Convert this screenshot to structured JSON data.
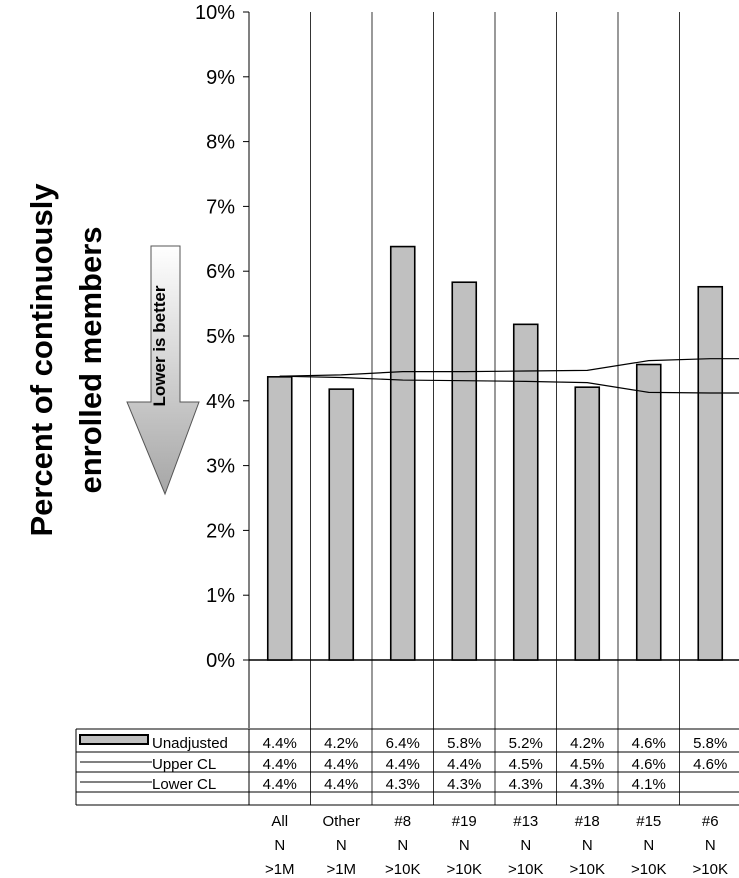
{
  "chart_data": {
    "type": "bar",
    "ylabel_lines": [
      "Percent of continuously",
      "enrolled members"
    ],
    "ylim": [
      0,
      10
    ],
    "yticks": [
      "0%",
      "1%",
      "2%",
      "3%",
      "4%",
      "5%",
      "6%",
      "7%",
      "8%",
      "9%",
      "10%"
    ],
    "annotation": "Lower is better",
    "categories": [
      [
        "All",
        "N",
        ">1M"
      ],
      [
        "Other",
        "N",
        ">1M"
      ],
      [
        "#8",
        "N",
        ">10K"
      ],
      [
        "#19",
        "N",
        ">10K"
      ],
      [
        "#13",
        "N",
        ">10K"
      ],
      [
        "#18",
        "N",
        ">10K"
      ],
      [
        "#15",
        "N",
        ">10K"
      ],
      [
        "#6",
        "N",
        ">10K"
      ]
    ],
    "series": [
      {
        "name": "Unadjusted",
        "kind": "bar",
        "values": [
          4.37,
          4.18,
          6.38,
          5.83,
          5.18,
          4.21,
          4.56,
          5.76
        ],
        "labels": [
          "4.4%",
          "4.2%",
          "6.4%",
          "5.8%",
          "5.2%",
          "4.2%",
          "4.6%",
          "5.8%"
        ]
      },
      {
        "name": "Upper CL",
        "kind": "line",
        "values": [
          4.38,
          4.4,
          4.45,
          4.45,
          4.46,
          4.47,
          4.62,
          4.65
        ],
        "labels": [
          "4.4%",
          "4.4%",
          "4.4%",
          "4.4%",
          "4.5%",
          "4.5%",
          "4.6%",
          "4.6%"
        ]
      },
      {
        "name": "Lower CL",
        "kind": "line",
        "values": [
          4.38,
          4.36,
          4.32,
          4.31,
          4.3,
          4.28,
          4.13,
          4.12
        ],
        "labels": [
          "4.4%",
          "4.4%",
          "4.3%",
          "4.3%",
          "4.3%",
          "4.3%",
          "4.1%",
          ""
        ]
      }
    ],
    "colors": {
      "bar_fill": "#c0c0c0",
      "bar_stroke": "#000000",
      "line": "#000000"
    },
    "grid": true,
    "legend": "table-below"
  }
}
